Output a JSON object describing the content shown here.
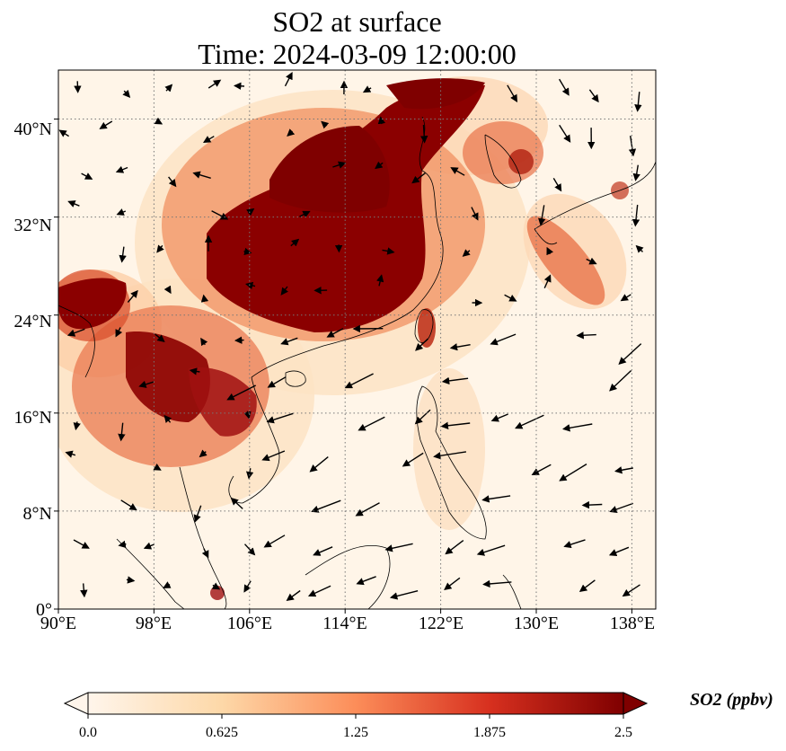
{
  "title": {
    "line1": "SO2 at surface",
    "line2": "Time: 2024-03-09 12:00:00"
  },
  "map": {
    "lon_range": [
      90,
      140
    ],
    "lat_range": [
      0,
      44
    ],
    "lon_ticks": [
      "90°E",
      "98°E",
      "106°E",
      "114°E",
      "122°E",
      "130°E",
      "138°E"
    ],
    "lat_ticks": [
      "0°",
      "8°N",
      "16°N",
      "24°N",
      "32°N",
      "40°N"
    ],
    "gridlines": "dotted",
    "overlay": "wind vectors",
    "colors": {
      "background": "#fff5e8",
      "low": "#fde3c4",
      "mid": "#e8744a",
      "high": "#c0341d",
      "max": "#7f0000",
      "coastline": "#000000"
    }
  },
  "colorbar": {
    "label": "SO2 (ppbv)",
    "ticks": [
      "0.0",
      "0.625",
      "1.25",
      "1.875",
      "2.5"
    ],
    "range": [
      0,
      2.5
    ],
    "extend": "both",
    "cmap": [
      "#fff5eb",
      "#fdd8a8",
      "#fc8d59",
      "#d7301f",
      "#7f0000"
    ]
  }
}
